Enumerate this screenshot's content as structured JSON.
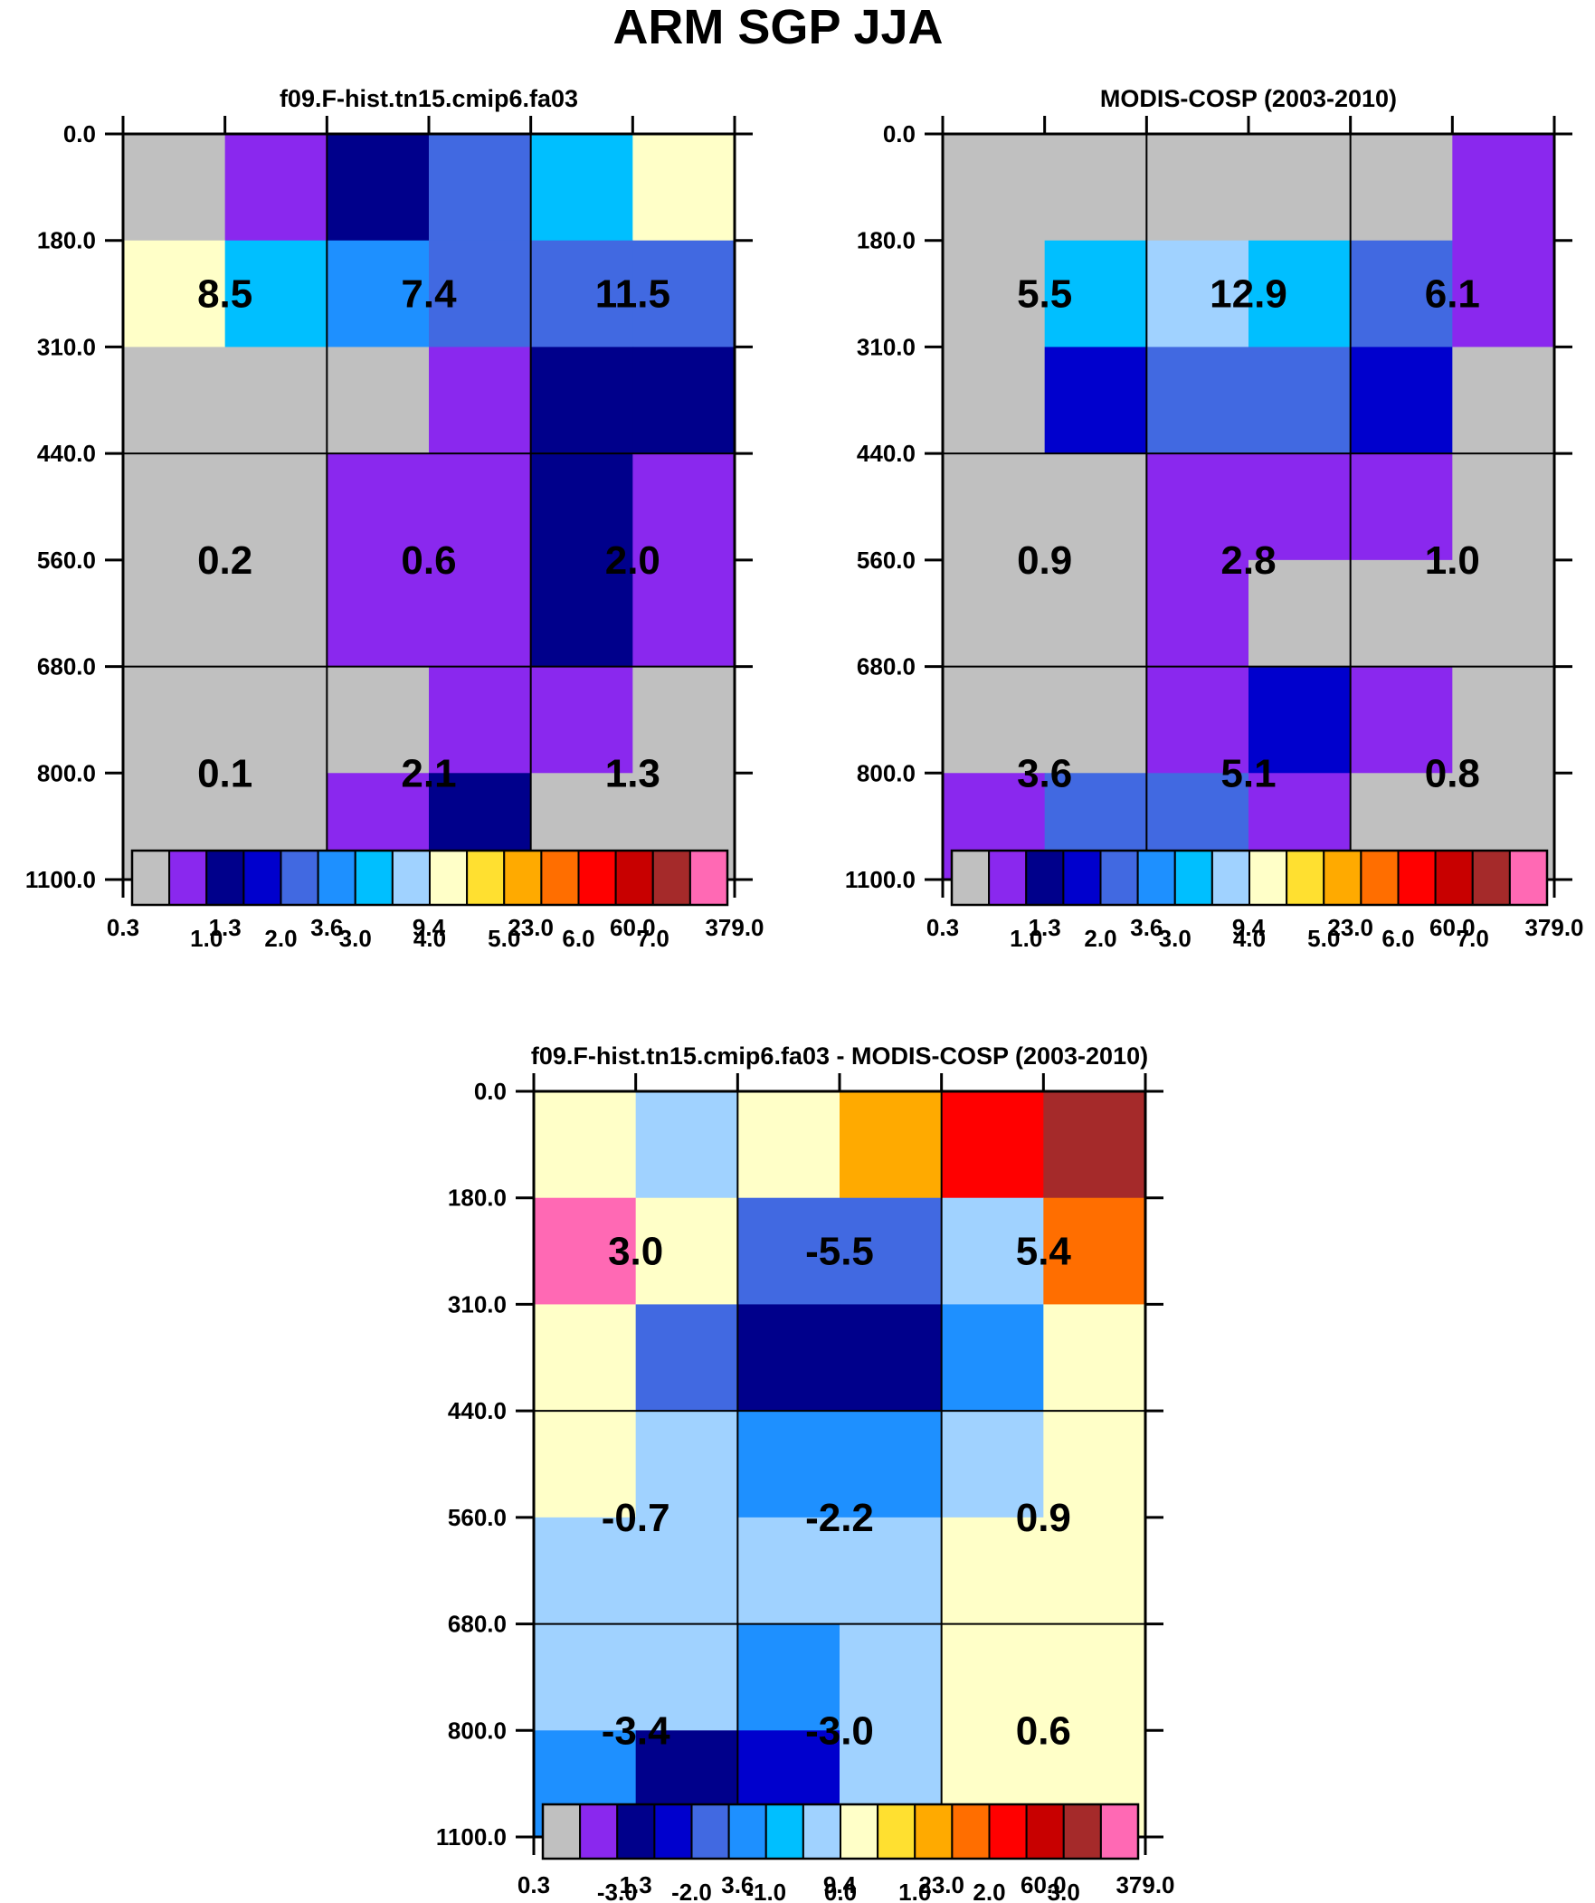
{
  "page_title": "ARM SGP JJA",
  "chart_data": [
    {
      "type": "heatmap",
      "title": "f09.F-hist.tn15.cmip6.fa03",
      "x_ticks": [
        "0.3",
        "1.3",
        "3.6",
        "9.4",
        "23.0",
        "60.0",
        "379.0"
      ],
      "y_ticks": [
        "0.0",
        "180.0",
        "310.0",
        "440.0",
        "560.0",
        "680.0",
        "800.0",
        "1100.0"
      ],
      "values": [
        [
          0.3,
          0.6,
          1.1,
          2.3,
          3.2,
          4.2
        ],
        [
          4.1,
          3.1,
          2.9,
          2.4,
          2.4,
          2.4
        ],
        [
          0.2,
          0.3,
          0.4,
          0.6,
          1.0,
          1.0
        ],
        [
          0.3,
          0.4,
          0.5,
          0.7,
          1.1,
          0.5
        ],
        [
          0.3,
          0.4,
          0.6,
          0.6,
          1.0,
          0.5
        ],
        [
          0.0,
          0.2,
          0.3,
          0.9,
          0.8,
          0.3
        ],
        [
          0.1,
          0.3,
          0.6,
          1.2,
          0.3,
          0.2
        ]
      ],
      "box_labels": [
        [
          "8.5",
          "7.4",
          "11.5"
        ],
        [
          "0.2",
          "0.6",
          "2.0"
        ],
        [
          "0.1",
          "2.1",
          "1.3"
        ]
      ],
      "colorbar": {
        "colors": [
          "#c0c0c0",
          "#8a28ee",
          "#00008b",
          "#0000cd",
          "#4169e1",
          "#1e90ff",
          "#00bfff",
          "#a0d2ff",
          "#ffffc8",
          "#ffe030",
          "#ffaa00",
          "#ff6e00",
          "#ff0000",
          "#c80000",
          "#a52a2a",
          "#ff69b4"
        ],
        "levels": [
          0.5,
          1.0,
          1.5,
          2.0,
          2.5,
          3.0,
          3.5,
          4.0,
          4.5,
          5.0,
          5.5,
          6.0,
          6.5,
          7.0,
          7.5
        ],
        "tick_labels": [
          "1.0",
          "2.0",
          "3.0",
          "4.0",
          "5.0",
          "6.0",
          "7.0"
        ]
      }
    },
    {
      "type": "heatmap",
      "title": "MODIS-COSP (2003-2010)",
      "x_ticks": [
        "0.3",
        "1.3",
        "3.6",
        "9.4",
        "23.0",
        "60.0",
        "379.0"
      ],
      "y_ticks": [
        "0.0",
        "180.0",
        "310.0",
        "440.0",
        "560.0",
        "680.0",
        "800.0",
        "1100.0"
      ],
      "values": [
        [
          0.3,
          0.4,
          0.3,
          0.4,
          0.3,
          0.7
        ],
        [
          0.3,
          3.2,
          3.8,
          3.3,
          2.4,
          0.8
        ],
        [
          0.3,
          1.8,
          2.4,
          2.4,
          1.8,
          0.4
        ],
        [
          0.2,
          0.4,
          0.8,
          0.9,
          0.7,
          0.4
        ],
        [
          0.2,
          0.4,
          0.8,
          0.3,
          0.3,
          0.2
        ],
        [
          0.4,
          0.4,
          0.7,
          1.7,
          0.8,
          0.2
        ],
        [
          0.8,
          2.4,
          2.3,
          0.6,
          0.4,
          0.2
        ]
      ],
      "box_labels": [
        [
          "5.5",
          "12.9",
          "6.1"
        ],
        [
          "0.9",
          "2.8",
          "1.0"
        ],
        [
          "3.6",
          "5.1",
          "0.8"
        ]
      ],
      "colorbar": {
        "colors": [
          "#c0c0c0",
          "#8a28ee",
          "#00008b",
          "#0000cd",
          "#4169e1",
          "#1e90ff",
          "#00bfff",
          "#a0d2ff",
          "#ffffc8",
          "#ffe030",
          "#ffaa00",
          "#ff6e00",
          "#ff0000",
          "#c80000",
          "#a52a2a",
          "#ff69b4"
        ],
        "levels": [
          0.5,
          1.0,
          1.5,
          2.0,
          2.5,
          3.0,
          3.5,
          4.0,
          4.5,
          5.0,
          5.5,
          6.0,
          6.5,
          7.0,
          7.5
        ],
        "tick_labels": [
          "1.0",
          "2.0",
          "3.0",
          "4.0",
          "5.0",
          "6.0",
          "7.0"
        ]
      }
    },
    {
      "type": "heatmap",
      "title": "f09.F-hist.tn15.cmip6.fa03 - MODIS-COSP (2003-2010)",
      "x_ticks": [
        "0.3",
        "1.3",
        "3.6",
        "9.4",
        "23.0",
        "60.0",
        "379.0"
      ],
      "y_ticks": [
        "0.0",
        "180.0",
        "310.0",
        "440.0",
        "560.0",
        "680.0",
        "800.0",
        "1100.0"
      ],
      "values": [
        [
          0.2,
          -0.3,
          0.2,
          1.2,
          2.3,
          3.3
        ],
        [
          3.6,
          0.3,
          -1.7,
          -1.7,
          -0.3,
          1.7
        ],
        [
          0.2,
          -1.7,
          -2.6,
          -2.6,
          -1.3,
          0.2
        ],
        [
          0.2,
          -0.3,
          -1.3,
          -1.3,
          -0.3,
          0.3
        ],
        [
          -0.3,
          -0.3,
          -0.3,
          -0.3,
          0.2,
          0.2
        ],
        [
          -0.3,
          -0.3,
          -1.3,
          -0.3,
          0.2,
          0.2
        ],
        [
          -1.3,
          -2.6,
          -2.2,
          -0.3,
          0.2,
          0.2
        ]
      ],
      "box_labels": [
        [
          "3.0",
          "-5.5",
          "5.4"
        ],
        [
          "-0.7",
          "-2.2",
          "0.9"
        ],
        [
          "-3.4",
          "-3.0",
          "0.6"
        ]
      ],
      "colorbar": {
        "colors": [
          "#c0c0c0",
          "#8a28ee",
          "#00008b",
          "#0000cd",
          "#4169e1",
          "#1e90ff",
          "#00bfff",
          "#a0d2ff",
          "#ffffc8",
          "#ffe030",
          "#ffaa00",
          "#ff6e00",
          "#ff0000",
          "#c80000",
          "#a52a2a",
          "#ff69b4"
        ],
        "levels": [
          -3.5,
          -3.0,
          -2.5,
          -2.0,
          -1.5,
          -1.0,
          -0.5,
          0.0,
          0.5,
          1.0,
          1.5,
          2.0,
          2.5,
          3.0,
          3.5
        ],
        "tick_labels": [
          "-3.0",
          "-2.0",
          "-1.0",
          "0.0",
          "1.0",
          "2.0",
          "3.0"
        ]
      }
    }
  ]
}
